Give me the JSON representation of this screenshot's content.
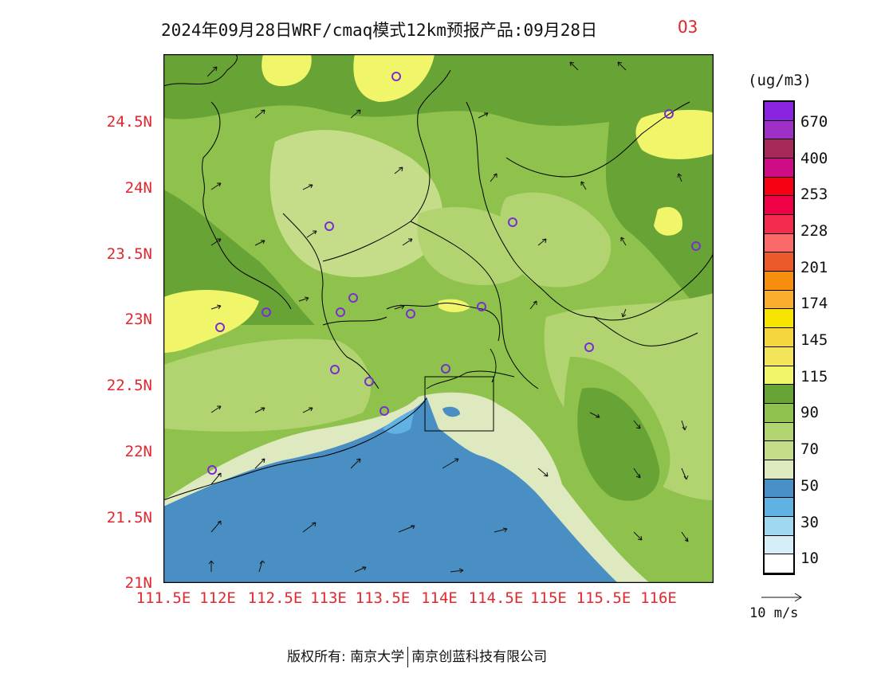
{
  "title": "2024年09月28日WRF/cmaq模式12km预报产品:09月28日",
  "species": "O3",
  "latitude_labels": [
    "24.5N",
    "24N",
    "23.5N",
    "23N",
    "22.5N",
    "22N",
    "21.5N",
    "21N"
  ],
  "longitude_labels": [
    "111.5E",
    "112E",
    "112.5E",
    "113E",
    "113.5E",
    "114E",
    "114.5E",
    "115E",
    "115.5E",
    "116E"
  ],
  "colorbar": {
    "unit": "(ug/m3)",
    "labels": [
      "670",
      "400",
      "253",
      "228",
      "201",
      "174",
      "145",
      "115",
      "90",
      "70",
      "50",
      "30",
      "10"
    ],
    "colors": [
      "#ffffff",
      "#d6eef8",
      "#9fd8f0",
      "#60b2e2",
      "#4a90c8",
      "#dfe9c0",
      "#c5dd88",
      "#b1d370",
      "#8ec24c",
      "#68a435",
      "#f0f56a",
      "#f3e55a",
      "#f5d63e",
      "#f7e400",
      "#fbae2d",
      "#f88e0e",
      "#ea5a2a",
      "#fb6a6a",
      "#f42a4e",
      "#f00044",
      "#f60014",
      "#ce0c86",
      "#a6295a",
      "#9e30c6",
      "#8a24e0"
    ]
  },
  "wind_reference": "10 m/s",
  "footer": {
    "copyright": "版权所有: 南京大学",
    "company": "南京创蓝科技有限公司"
  },
  "map_colors": {
    "sea": "#4a8fc4",
    "shelf": "#dfe9c0",
    "low": "#c5dd88",
    "mid": "#8ec24c",
    "high": "#68a435",
    "peak": "#f0f56a"
  }
}
